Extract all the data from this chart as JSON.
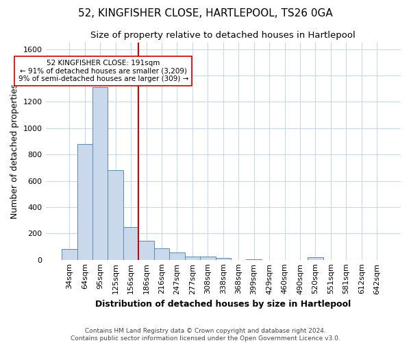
{
  "title": "52, KINGFISHER CLOSE, HARTLEPOOL, TS26 0GA",
  "subtitle": "Size of property relative to detached houses in Hartlepool",
  "xlabel": "Distribution of detached houses by size in Hartlepool",
  "ylabel": "Number of detached properties",
  "footnote1": "Contains HM Land Registry data © Crown copyright and database right 2024.",
  "footnote2": "Contains public sector information licensed under the Open Government Licence v3.0.",
  "categories": [
    "34sqm",
    "64sqm",
    "95sqm",
    "125sqm",
    "156sqm",
    "186sqm",
    "216sqm",
    "247sqm",
    "277sqm",
    "308sqm",
    "338sqm",
    "368sqm",
    "399sqm",
    "429sqm",
    "460sqm",
    "490sqm",
    "520sqm",
    "551sqm",
    "581sqm",
    "612sqm",
    "642sqm"
  ],
  "values": [
    80,
    880,
    1310,
    680,
    250,
    145,
    85,
    55,
    25,
    25,
    15,
    0,
    5,
    0,
    0,
    0,
    20,
    0,
    0,
    0,
    0
  ],
  "bar_color": "#c9d9eb",
  "bar_edge_color": "#5a8bb0",
  "vline_index": 5,
  "vline_color": "#cc0000",
  "annotation_line1": "52 KINGFISHER CLOSE: 191sqm",
  "annotation_line2": "← 91% of detached houses are smaller (3,209)",
  "annotation_line3": "9% of semi-detached houses are larger (309) →",
  "ylim": [
    0,
    1650
  ],
  "yticks": [
    0,
    200,
    400,
    600,
    800,
    1000,
    1200,
    1400,
    1600
  ],
  "background_color": "#ffffff",
  "grid_color": "#c8d8e8",
  "title_fontsize": 11,
  "subtitle_fontsize": 9.5,
  "axis_label_fontsize": 9,
  "tick_fontsize": 8,
  "footnote_fontsize": 6.5
}
